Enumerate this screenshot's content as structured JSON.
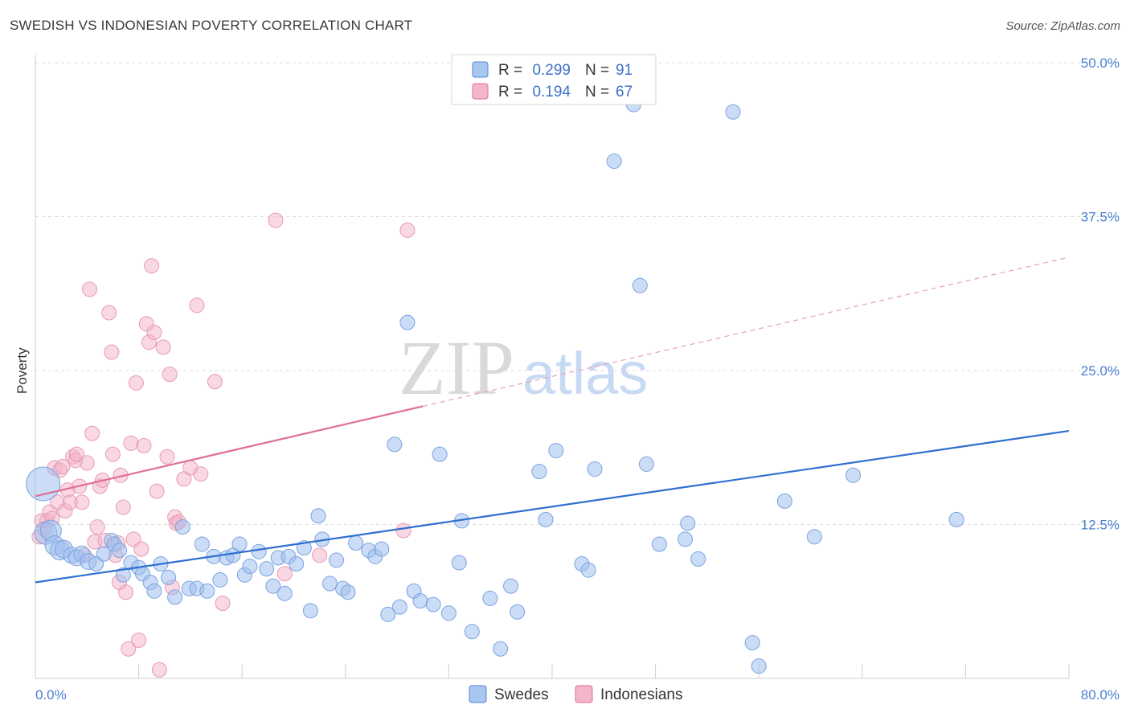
{
  "title": "SWEDISH VS INDONESIAN POVERTY CORRELATION CHART",
  "source": "Source: ZipAtlas.com",
  "watermark": {
    "zip": "ZIP",
    "atlas": "atlas"
  },
  "chart_data": {
    "type": "scatter",
    "ylabel": "Poverty",
    "xlim": [
      0,
      80
    ],
    "ylim": [
      0,
      50
    ],
    "x_tick_labels": [
      "0.0%",
      "80.0%"
    ],
    "y_ticks": [
      12.5,
      25.0,
      37.5,
      50.0
    ],
    "y_tick_labels": [
      "12.5%",
      "25.0%",
      "37.5%",
      "50.0%"
    ],
    "grid": true,
    "legend": [
      {
        "name": "Swedes",
        "r_label": "R =",
        "r": "0.299",
        "n_label": "N =",
        "n": "91",
        "color": "#4f86d9",
        "fill": "#a9c6ef"
      },
      {
        "name": "Indonesians",
        "r_label": "R =",
        "r": "0.194",
        "n_label": "N =",
        "n": "67",
        "color": "#e06e96",
        "fill": "#f4b5c8"
      }
    ],
    "series": [
      {
        "name": "Swedes",
        "color": "#4f86d9",
        "trend": {
          "x": [
            0,
            80
          ],
          "y": [
            7.8,
            20.1
          ],
          "dashed": false
        },
        "points": [
          [
            0.6,
            15.8
          ],
          [
            0.8,
            11.8
          ],
          [
            1.2,
            12.0
          ],
          [
            1.5,
            10.8
          ],
          [
            1.9,
            10.4
          ],
          [
            2.2,
            10.5
          ],
          [
            2.8,
            10.0
          ],
          [
            3.2,
            9.8
          ],
          [
            3.6,
            10.1
          ],
          [
            4.1,
            9.5
          ],
          [
            4.7,
            9.3
          ],
          [
            5.3,
            10.1
          ],
          [
            5.9,
            11.2
          ],
          [
            6.1,
            10.9
          ],
          [
            6.5,
            10.4
          ],
          [
            6.8,
            8.4
          ],
          [
            7.4,
            9.4
          ],
          [
            8.0,
            9.0
          ],
          [
            8.3,
            8.5
          ],
          [
            8.9,
            7.8
          ],
          [
            9.2,
            7.1
          ],
          [
            9.7,
            9.3
          ],
          [
            10.3,
            8.2
          ],
          [
            10.8,
            6.6
          ],
          [
            11.4,
            12.3
          ],
          [
            11.9,
            7.3
          ],
          [
            12.5,
            7.3
          ],
          [
            12.9,
            10.9
          ],
          [
            13.3,
            7.1
          ],
          [
            13.8,
            9.9
          ],
          [
            14.3,
            8.0
          ],
          [
            14.8,
            9.8
          ],
          [
            15.3,
            10.0
          ],
          [
            15.8,
            10.9
          ],
          [
            16.2,
            8.4
          ],
          [
            16.6,
            9.1
          ],
          [
            17.3,
            10.3
          ],
          [
            17.9,
            8.9
          ],
          [
            18.4,
            7.5
          ],
          [
            18.8,
            9.8
          ],
          [
            19.3,
            6.9
          ],
          [
            19.6,
            9.9
          ],
          [
            20.2,
            9.3
          ],
          [
            20.8,
            10.6
          ],
          [
            21.3,
            5.5
          ],
          [
            21.9,
            13.2
          ],
          [
            22.2,
            11.3
          ],
          [
            22.8,
            7.7
          ],
          [
            23.3,
            9.6
          ],
          [
            23.8,
            7.3
          ],
          [
            24.2,
            7.0
          ],
          [
            24.8,
            11.0
          ],
          [
            25.8,
            10.4
          ],
          [
            26.3,
            9.9
          ],
          [
            26.8,
            10.5
          ],
          [
            27.3,
            5.2
          ],
          [
            27.8,
            19.0
          ],
          [
            28.2,
            5.8
          ],
          [
            28.8,
            28.9
          ],
          [
            29.3,
            7.1
          ],
          [
            29.8,
            6.3
          ],
          [
            30.8,
            6.0
          ],
          [
            31.3,
            18.2
          ],
          [
            32.0,
            5.3
          ],
          [
            32.8,
            9.4
          ],
          [
            33.0,
            12.8
          ],
          [
            33.8,
            3.8
          ],
          [
            35.2,
            6.5
          ],
          [
            36.0,
            2.4
          ],
          [
            36.8,
            7.5
          ],
          [
            37.3,
            5.4
          ],
          [
            39.0,
            16.8
          ],
          [
            39.5,
            12.9
          ],
          [
            40.3,
            18.5
          ],
          [
            42.3,
            9.3
          ],
          [
            42.8,
            8.8
          ],
          [
            43.3,
            17.0
          ],
          [
            44.8,
            42.0
          ],
          [
            46.3,
            46.6
          ],
          [
            46.8,
            31.9
          ],
          [
            47.3,
            17.4
          ],
          [
            48.3,
            10.9
          ],
          [
            50.3,
            11.3
          ],
          [
            50.5,
            12.6
          ],
          [
            51.3,
            9.7
          ],
          [
            54.0,
            46.0
          ],
          [
            55.5,
            2.9
          ],
          [
            56.0,
            1.0
          ],
          [
            58.0,
            14.4
          ],
          [
            60.3,
            11.5
          ],
          [
            63.3,
            16.5
          ],
          [
            71.3,
            12.9
          ],
          [
            34.0,
            49.5
          ]
        ],
        "radius": [
          21,
          14,
          13,
          12,
          12,
          11,
          10,
          10,
          10,
          10
        ]
      },
      {
        "name": "Indonesians",
        "color": "#e06e96",
        "trend": {
          "x": [
            0,
            30,
            80
          ],
          "y": [
            14.8,
            22.1,
            34.2
          ],
          "dashed_after": 30
        },
        "points": [
          [
            0.5,
            12.8
          ],
          [
            0.7,
            12.1
          ],
          [
            0.9,
            12.8
          ],
          [
            1.1,
            13.5
          ],
          [
            1.3,
            13.0
          ],
          [
            1.5,
            17.1
          ],
          [
            1.7,
            14.3
          ],
          [
            1.9,
            16.9
          ],
          [
            2.1,
            17.2
          ],
          [
            2.3,
            13.6
          ],
          [
            2.5,
            15.3
          ],
          [
            2.7,
            14.3
          ],
          [
            2.9,
            18.0
          ],
          [
            3.1,
            17.7
          ],
          [
            3.2,
            18.2
          ],
          [
            3.4,
            15.6
          ],
          [
            3.6,
            14.3
          ],
          [
            3.8,
            10.0
          ],
          [
            4.0,
            17.5
          ],
          [
            4.2,
            31.6
          ],
          [
            4.4,
            19.9
          ],
          [
            4.6,
            11.1
          ],
          [
            4.8,
            12.3
          ],
          [
            5.0,
            15.6
          ],
          [
            5.2,
            16.1
          ],
          [
            5.4,
            11.2
          ],
          [
            5.7,
            29.7
          ],
          [
            5.9,
            26.5
          ],
          [
            6.0,
            18.2
          ],
          [
            6.2,
            10.0
          ],
          [
            6.4,
            11.0
          ],
          [
            6.6,
            16.5
          ],
          [
            6.8,
            13.9
          ],
          [
            7.0,
            7.0
          ],
          [
            7.2,
            2.4
          ],
          [
            7.4,
            19.1
          ],
          [
            7.6,
            11.3
          ],
          [
            7.8,
            24.0
          ],
          [
            8.0,
            3.1
          ],
          [
            8.2,
            10.5
          ],
          [
            8.4,
            18.9
          ],
          [
            8.6,
            28.8
          ],
          [
            8.8,
            27.3
          ],
          [
            9.0,
            33.5
          ],
          [
            9.2,
            28.1
          ],
          [
            9.4,
            15.2
          ],
          [
            9.6,
            0.7
          ],
          [
            9.9,
            26.9
          ],
          [
            10.2,
            18.0
          ],
          [
            10.4,
            24.7
          ],
          [
            10.6,
            7.4
          ],
          [
            10.8,
            13.1
          ],
          [
            10.9,
            12.6
          ],
          [
            11.1,
            12.7
          ],
          [
            11.5,
            16.2
          ],
          [
            12.0,
            17.1
          ],
          [
            12.5,
            30.3
          ],
          [
            12.8,
            16.6
          ],
          [
            13.9,
            24.1
          ],
          [
            14.5,
            6.1
          ],
          [
            18.6,
            37.2
          ],
          [
            19.3,
            8.5
          ],
          [
            22.0,
            10.0
          ],
          [
            28.8,
            36.4
          ],
          [
            28.5,
            12.0
          ],
          [
            6.5,
            7.8
          ],
          [
            0.3,
            11.5
          ]
        ]
      }
    ]
  }
}
